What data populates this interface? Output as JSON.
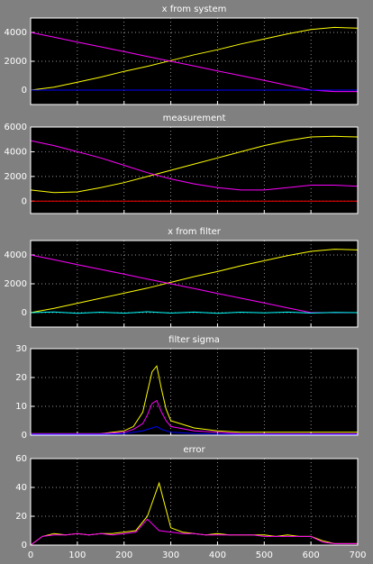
{
  "chart_data": [
    {
      "type": "line",
      "title": "x from system",
      "xlim": [
        0,
        700
      ],
      "ylim": [
        -1000,
        5000
      ],
      "yticks": [
        0,
        2000,
        4000
      ],
      "grid": true,
      "x": [
        0,
        50,
        100,
        150,
        200,
        250,
        300,
        350,
        400,
        450,
        500,
        550,
        600,
        650,
        700
      ],
      "series": [
        {
          "color": "#ffff00",
          "values": [
            0,
            200,
            550,
            900,
            1300,
            1650,
            2050,
            2450,
            2800,
            3200,
            3550,
            3900,
            4200,
            4350,
            4300
          ]
        },
        {
          "color": "#ff00ff",
          "values": [
            4000,
            3670,
            3330,
            3000,
            2670,
            2330,
            2000,
            1670,
            1330,
            1000,
            670,
            330,
            0,
            -100,
            -100
          ]
        },
        {
          "color": "#0000ff",
          "values": [
            0,
            0,
            0,
            0,
            0,
            0,
            0,
            0,
            0,
            0,
            0,
            0,
            0,
            0,
            0
          ]
        }
      ]
    },
    {
      "type": "line",
      "title": "measurement",
      "xlim": [
        0,
        700
      ],
      "ylim": [
        -1000,
        6000
      ],
      "yticks": [
        0,
        2000,
        4000,
        6000
      ],
      "grid": true,
      "x": [
        0,
        50,
        100,
        150,
        200,
        250,
        300,
        350,
        400,
        450,
        500,
        550,
        600,
        650,
        700
      ],
      "series": [
        {
          "color": "#ffff00",
          "values": [
            900,
            700,
            750,
            1100,
            1500,
            2000,
            2500,
            3000,
            3500,
            4000,
            4500,
            4900,
            5200,
            5250,
            5200
          ]
        },
        {
          "color": "#ff00ff",
          "values": [
            4900,
            4500,
            4000,
            3500,
            2900,
            2300,
            1800,
            1400,
            1100,
            900,
            900,
            1100,
            1300,
            1300,
            1200
          ]
        },
        {
          "color": "#ff0000",
          "values": [
            0,
            0,
            0,
            0,
            0,
            0,
            0,
            0,
            0,
            0,
            0,
            0,
            0,
            0,
            0
          ]
        }
      ]
    },
    {
      "type": "line",
      "title": "x from filter",
      "xlim": [
        0,
        700
      ],
      "ylim": [
        -1000,
        5000
      ],
      "yticks": [
        0,
        2000,
        4000
      ],
      "grid": true,
      "x": [
        0,
        50,
        100,
        150,
        200,
        250,
        300,
        350,
        400,
        450,
        500,
        550,
        600,
        650,
        700
      ],
      "series": [
        {
          "color": "#ffff00",
          "values": [
            0,
            300,
            650,
            1000,
            1350,
            1700,
            2100,
            2500,
            2850,
            3250,
            3600,
            3950,
            4250,
            4400,
            4350
          ]
        },
        {
          "color": "#ff00ff",
          "values": [
            4000,
            3670,
            3330,
            3000,
            2670,
            2330,
            2000,
            1670,
            1330,
            1000,
            670,
            330,
            0,
            0,
            0
          ]
        },
        {
          "color": "#00ffff",
          "values": [
            0,
            50,
            -50,
            30,
            -40,
            60,
            -30,
            40,
            -50,
            30,
            -20,
            40,
            -30,
            20,
            0
          ]
        }
      ]
    },
    {
      "type": "line",
      "title": "filter sigma",
      "xlim": [
        0,
        700
      ],
      "ylim": [
        0,
        30
      ],
      "yticks": [
        0,
        10,
        20,
        30
      ],
      "grid": true,
      "x": [
        0,
        50,
        100,
        150,
        200,
        220,
        240,
        250,
        260,
        270,
        280,
        290,
        300,
        350,
        400,
        450,
        500,
        550,
        600,
        650,
        700
      ],
      "series": [
        {
          "color": "#ffff00",
          "values": [
            0.5,
            0.5,
            0.5,
            0.5,
            1.5,
            3,
            8,
            15,
            22,
            24,
            16,
            9,
            5,
            2.5,
            1.5,
            1,
            1,
            1,
            1,
            1,
            1
          ]
        },
        {
          "color": "#ff00ff",
          "values": [
            0.5,
            0.5,
            0.5,
            0.5,
            1,
            2,
            4,
            7,
            11,
            12,
            8,
            5,
            3,
            1.5,
            1,
            0.5,
            0.5,
            0.5,
            0.5,
            0.5,
            0.5
          ]
        },
        {
          "color": "#0000ff",
          "values": [
            0.3,
            0.3,
            0.3,
            0.3,
            0.5,
            1,
            1.5,
            2,
            2.5,
            3,
            2,
            1.5,
            1,
            0.6,
            0.4,
            0.3,
            0.3,
            0.3,
            0.3,
            0.3,
            0.3
          ]
        }
      ]
    },
    {
      "type": "line",
      "title": "error",
      "xlim": [
        0,
        700
      ],
      "ylim": [
        0,
        60
      ],
      "yticks": [
        0,
        20,
        40,
        60
      ],
      "grid": true,
      "xticks": [
        0,
        100,
        200,
        300,
        400,
        500,
        600,
        700
      ],
      "x": [
        0,
        25,
        50,
        75,
        100,
        125,
        150,
        175,
        200,
        225,
        250,
        275,
        300,
        325,
        350,
        375,
        400,
        425,
        450,
        475,
        500,
        525,
        550,
        575,
        600,
        625,
        650,
        675,
        700
      ],
      "series": [
        {
          "color": "#ffff00",
          "values": [
            0,
            6,
            8,
            7,
            8,
            7,
            8,
            8,
            9,
            10,
            20,
            43,
            12,
            9,
            8,
            7,
            8,
            7,
            7,
            7,
            7,
            6,
            7,
            6,
            6,
            3,
            1,
            1,
            1
          ]
        },
        {
          "color": "#ff00ff",
          "values": [
            0,
            6,
            7,
            7,
            8,
            7,
            8,
            7,
            8,
            9,
            18,
            10,
            9,
            8,
            8,
            7,
            7,
            7,
            7,
            7,
            6,
            6,
            6,
            6,
            6,
            2,
            1,
            1,
            1
          ]
        }
      ]
    }
  ]
}
